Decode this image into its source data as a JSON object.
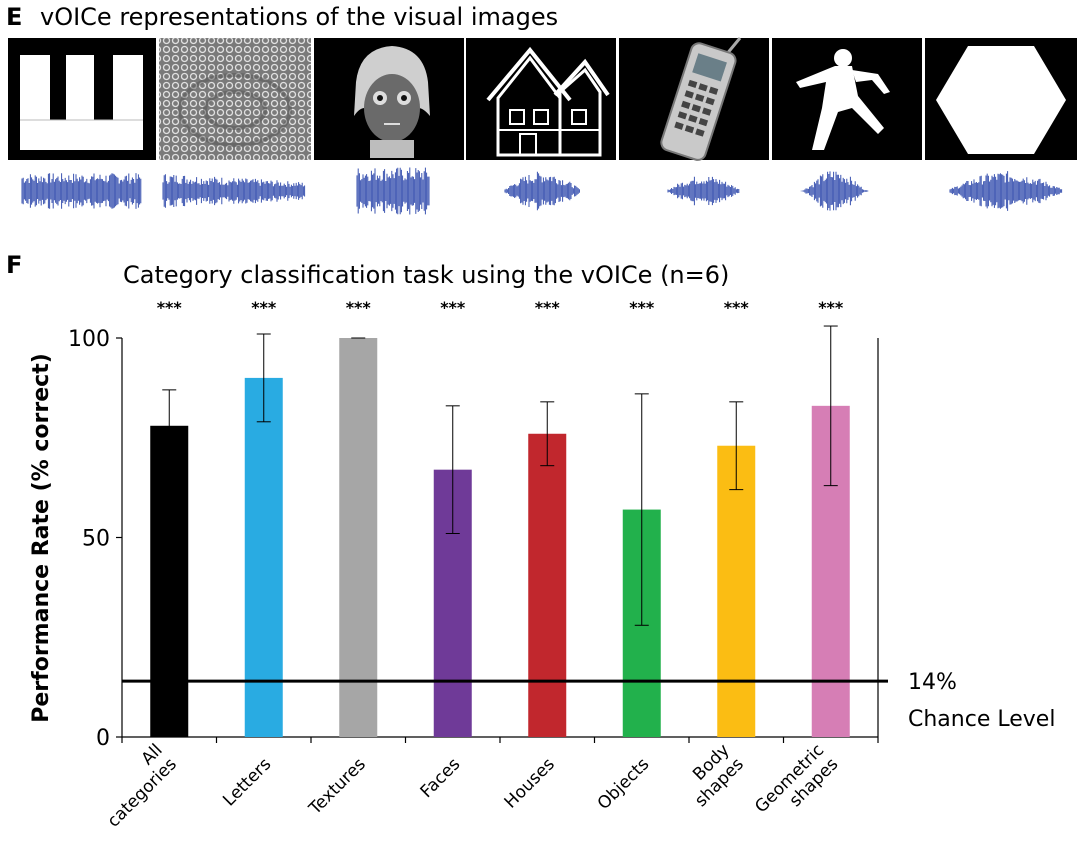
{
  "panel_e": {
    "letter": "E",
    "title": "vOICe representations of the visual images",
    "images": [
      {
        "name": "letters-image",
        "icon": "letter-bars-image"
      },
      {
        "name": "texture-image",
        "icon": "texture-pattern-image"
      },
      {
        "name": "face-image",
        "icon": "face-image"
      },
      {
        "name": "house-image",
        "icon": "house-image"
      },
      {
        "name": "object-image",
        "icon": "phone-image"
      },
      {
        "name": "body-shape-image",
        "icon": "body-silhouette-image"
      },
      {
        "name": "geometric-shape-image",
        "icon": "hexagon-image"
      }
    ],
    "waveform_color": "#3a53b0"
  },
  "panel_f": {
    "letter": "F"
  },
  "chart_data": {
    "type": "bar",
    "title": "Category classification task using the vOICe  (n=6)",
    "ylabel": "Performance Rate (% correct)",
    "xlabel": "",
    "ylim": [
      0,
      100
    ],
    "yticks": [
      "100",
      "50",
      "0"
    ],
    "categories": [
      [
        "All",
        "categories"
      ],
      [
        "Letters"
      ],
      [
        "Textures"
      ],
      [
        "Faces"
      ],
      [
        "Houses"
      ],
      [
        "Objects"
      ],
      [
        "Body",
        "shapes"
      ],
      [
        "Geometric",
        "shapes"
      ]
    ],
    "values": [
      78,
      90,
      100,
      67,
      76,
      57,
      73,
      83
    ],
    "error_low": [
      9,
      11,
      0,
      16,
      8,
      29,
      11,
      20
    ],
    "error_high": [
      9,
      11,
      0,
      16,
      8,
      29,
      11,
      20
    ],
    "colors": [
      "#000000",
      "#29abe2",
      "#a6a6a6",
      "#6f3a98",
      "#c1272d",
      "#22b14c",
      "#fbbd13",
      "#d67eb5"
    ],
    "significance": [
      "***",
      "***",
      "***",
      "***",
      "***",
      "***",
      "***",
      "***"
    ],
    "chance_level": {
      "value": 14,
      "label_line1": "14%",
      "label_line2": "Chance Level"
    },
    "grid": false
  }
}
